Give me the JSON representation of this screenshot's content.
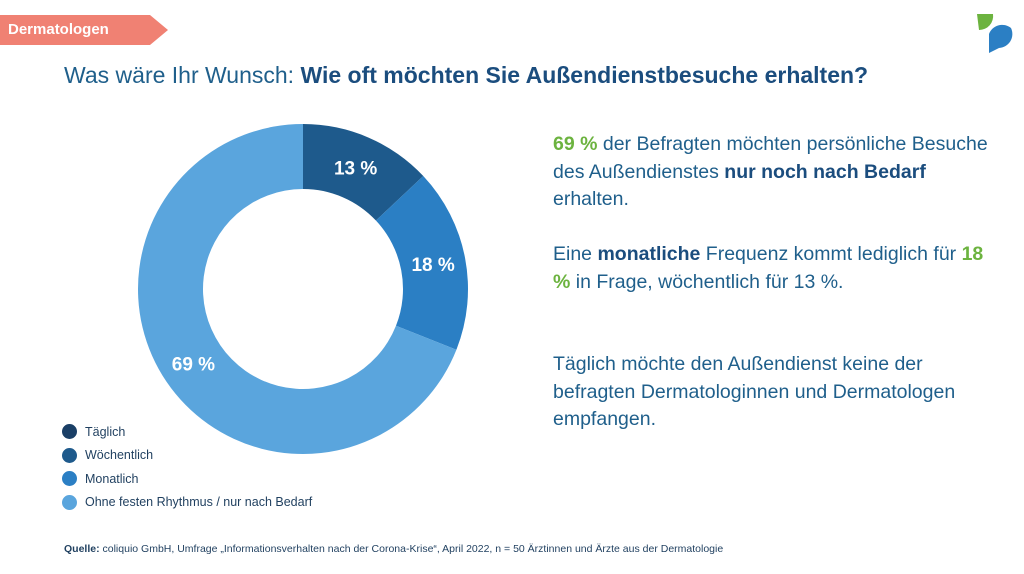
{
  "tag": {
    "label": "Dermatologen"
  },
  "title": {
    "prefix": "Was wäre Ihr Wunsch: ",
    "bold": "Wie oft möchten Sie Außendienstbesuche erhalten?"
  },
  "chart_data": {
    "type": "pie",
    "donut": true,
    "categories": [
      "Täglich",
      "Wöchentlich",
      "Monatlich",
      "Ohne festen Rhythmus / nur nach Bedarf"
    ],
    "values": [
      0,
      13,
      18,
      69
    ],
    "labels": [
      "",
      "13 %",
      "18 %",
      "69 %"
    ],
    "colors": [
      "#1a3f66",
      "#1e5a8c",
      "#2b7fc4",
      "#5aa5dd"
    ],
    "legend_position": "bottom-left",
    "title": ""
  },
  "text": {
    "p1": {
      "green": "69 %",
      "a": " der Befragten möchten persönliche Besuche des Außendienstes ",
      "bold": "nur noch nach Bedarf",
      "b": " erhalten."
    },
    "p2": {
      "a": "Eine ",
      "bold": "monatliche",
      "b": " Frequenz kommt lediglich für ",
      "green": "18 %",
      "c": " in Frage, wöchentlich für 13 %."
    },
    "p3": {
      "a": "Täglich möchte den Außendienst keine der befragten Dermatologinnen und Dermatologen empfangen."
    }
  },
  "source": {
    "label": "Quelle:",
    "text": " coliquio GmbH, Umfrage „Informationsverhalten nach der Corona-Krise“, April 2022, n = 50 Ärztinnen und Ärzte aus der Dermatologie"
  },
  "colors": {
    "tag": "#f08173",
    "title": "#1f5f8b",
    "highlight": "#6cb33f",
    "logo_green": "#6cb33f",
    "logo_blue": "#2b7fc4"
  }
}
